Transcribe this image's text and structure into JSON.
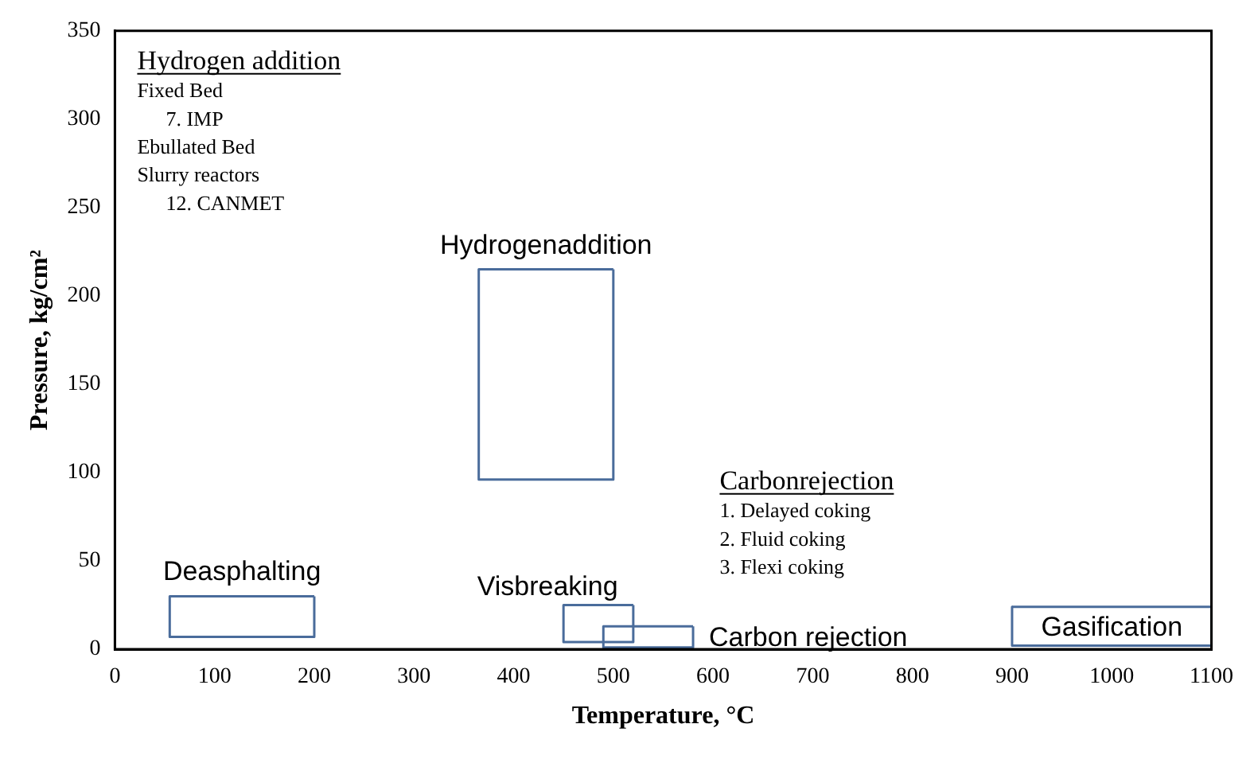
{
  "chart_data": {
    "type": "line",
    "xlabel": "Temperature, °C",
    "ylabel": "Pressure, kg/cm²",
    "xlim": [
      0,
      1100
    ],
    "xticks": [
      0,
      100,
      200,
      300,
      400,
      500,
      600,
      700,
      800,
      900,
      1000,
      1100
    ],
    "ylim": [
      0,
      350
    ],
    "yticks": [
      0,
      50,
      100,
      150,
      200,
      250,
      300,
      350
    ],
    "grid": false,
    "legend": false,
    "series": [
      {
        "name": "Deasphalting",
        "color": "#4a6c9b",
        "x": [
          55,
          55,
          200,
          200
        ],
        "values": [
          30,
          7,
          7,
          30
        ]
      },
      {
        "color": "#4a6c9b",
        "x": [
          55,
          200
        ],
        "values": [
          30,
          30
        ]
      },
      {
        "name": "Hydrogenaddition",
        "color": "#4a6c9b",
        "x": [
          365,
          365,
          500,
          500
        ],
        "values": [
          215,
          96,
          96,
          215
        ]
      },
      {
        "color": "#4a6c9b",
        "x": [
          365,
          500
        ],
        "values": [
          215,
          215
        ]
      },
      {
        "name": "Visbreaking",
        "color": "#4a6c9b",
        "x": [
          450,
          450,
          520,
          520
        ],
        "values": [
          25,
          4,
          4,
          25
        ]
      },
      {
        "color": "#4a6c9b",
        "x": [
          450,
          520
        ],
        "values": [
          25,
          25
        ]
      },
      {
        "name": "Carbon rejection",
        "color": "#4a6c9b",
        "x": [
          490,
          490,
          580,
          580
        ],
        "values": [
          13,
          1,
          1,
          13
        ]
      },
      {
        "color": "#4a6c9b",
        "x": [
          490,
          580
        ],
        "values": [
          13,
          13
        ]
      },
      {
        "name": "Gasification",
        "color": "#4a6c9b",
        "x": [
          900,
          900,
          1100,
          1100
        ],
        "values": [
          24,
          2,
          2,
          24
        ]
      },
      {
        "color": "#4a6c9b",
        "x": [
          900,
          1100
        ],
        "values": [
          24,
          24
        ]
      }
    ],
    "annotations": [
      "Hydrogen addition",
      "Fixed Bed",
      "7. IMP",
      "Ebullated Bed",
      "Slurry reactors",
      "12. CANMET",
      "Carbonrejection",
      "1. Delayed coking",
      "2. Fluid coking",
      "3. Flexi coking"
    ]
  }
}
